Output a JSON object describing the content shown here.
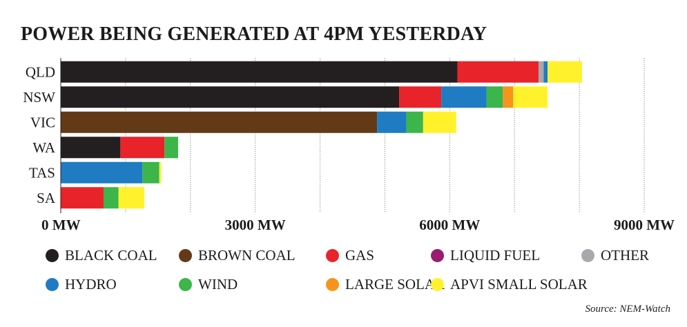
{
  "chart_data": {
    "type": "bar",
    "orientation": "horizontal",
    "stacked": true,
    "title": "POWER BEING GENERATED AT 4PM YESTERDAY",
    "xlabel": "",
    "ylabel": "",
    "xlim": [
      0,
      9000
    ],
    "x_ticks": [
      {
        "value": 0,
        "label": "0 MW"
      },
      {
        "value": 3000,
        "label": "3000 MW"
      },
      {
        "value": 6000,
        "label": "6000 MW"
      },
      {
        "value": 9000,
        "label": "9000 MW"
      }
    ],
    "grid_values": [
      0,
      1000,
      2000,
      3000,
      4000,
      5000,
      6000,
      7000,
      8000,
      9000
    ],
    "categories": [
      "QLD",
      "NSW",
      "VIC",
      "WA",
      "TAS",
      "SA"
    ],
    "series": [
      {
        "name": "BLACK COAL",
        "color": "#231f20",
        "values": [
          6120,
          5220,
          0,
          920,
          0,
          0
        ]
      },
      {
        "name": "BROWN COAL",
        "color": "#633a17",
        "values": [
          0,
          0,
          4880,
          0,
          0,
          0
        ]
      },
      {
        "name": "GAS",
        "color": "#e8232a",
        "values": [
          1250,
          650,
          0,
          680,
          0,
          660
        ]
      },
      {
        "name": "LIQUID FUEL",
        "color": "#9b1d6f",
        "values": [
          0,
          0,
          0,
          0,
          0,
          0
        ]
      },
      {
        "name": "OTHER",
        "color": "#a7a9ac",
        "values": [
          80,
          0,
          0,
          0,
          0,
          0
        ]
      },
      {
        "name": "HYDRO",
        "color": "#1f7cc2",
        "values": [
          60,
          700,
          450,
          0,
          1260,
          0
        ]
      },
      {
        "name": "WIND",
        "color": "#3cb54a",
        "values": [
          0,
          250,
          260,
          210,
          260,
          230
        ]
      },
      {
        "name": "LARGE SOLAR",
        "color": "#f7941d",
        "values": [
          0,
          160,
          0,
          0,
          0,
          0
        ]
      },
      {
        "name": "APVI SMALL SOLAR",
        "color": "#fff22d",
        "values": [
          530,
          530,
          510,
          0,
          30,
          400
        ]
      }
    ],
    "grid": true,
    "legend_position": "bottom"
  },
  "source": "Source: NEM-Watch"
}
